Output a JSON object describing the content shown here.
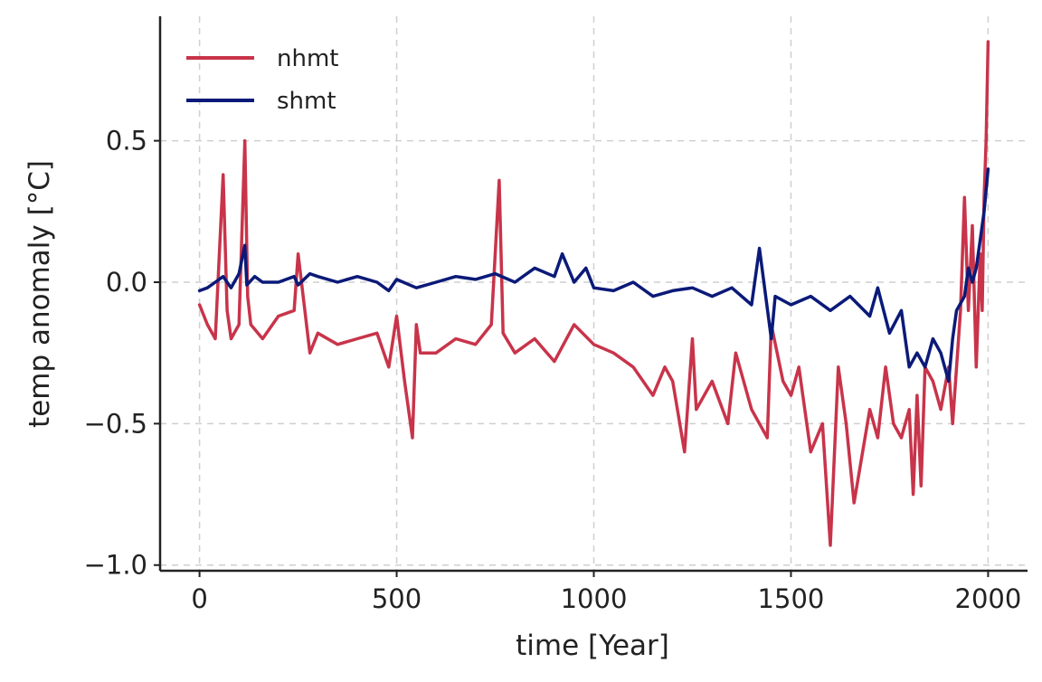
{
  "chart_data": {
    "type": "line",
    "title": "",
    "xlabel": "time [Year]",
    "ylabel": "temp anomaly [°C]",
    "xlim": [
      -100,
      2100
    ],
    "ylim": [
      -1.02,
      0.94
    ],
    "xticks": [
      0,
      500,
      1000,
      1500,
      2000
    ],
    "xtick_labels": [
      "0",
      "500",
      "1000",
      "1500",
      "2000"
    ],
    "yticks": [
      0.5,
      0.0,
      -0.5,
      -1.0
    ],
    "ytick_labels": [
      "0.5",
      "0.0",
      "−0.5",
      "−1.0"
    ],
    "grid": true,
    "legend_position": "upper-left",
    "series": [
      {
        "name": "nhmt",
        "color": "#c8344a",
        "x": [
          0,
          20,
          40,
          60,
          70,
          80,
          100,
          115,
          122,
          130,
          160,
          200,
          240,
          250,
          280,
          300,
          350,
          400,
          450,
          480,
          500,
          520,
          540,
          550,
          560,
          600,
          650,
          700,
          740,
          760,
          770,
          800,
          850,
          900,
          950,
          1000,
          1050,
          1100,
          1150,
          1180,
          1200,
          1230,
          1250,
          1260,
          1300,
          1340,
          1360,
          1400,
          1440,
          1450,
          1480,
          1500,
          1520,
          1550,
          1580,
          1600,
          1620,
          1640,
          1660,
          1700,
          1720,
          1740,
          1760,
          1780,
          1800,
          1810,
          1820,
          1830,
          1840,
          1860,
          1880,
          1900,
          1910,
          1930,
          1940,
          1950,
          1960,
          1970,
          1980,
          1985,
          1990,
          1995,
          2000
        ],
        "values": [
          -0.08,
          -0.15,
          -0.2,
          0.38,
          -0.1,
          -0.2,
          -0.15,
          0.5,
          -0.05,
          -0.15,
          -0.2,
          -0.12,
          -0.1,
          0.1,
          -0.25,
          -0.18,
          -0.22,
          -0.2,
          -0.18,
          -0.3,
          -0.12,
          -0.35,
          -0.55,
          -0.15,
          -0.25,
          -0.25,
          -0.2,
          -0.22,
          -0.15,
          0.36,
          -0.18,
          -0.25,
          -0.2,
          -0.28,
          -0.15,
          -0.22,
          -0.25,
          -0.3,
          -0.4,
          -0.3,
          -0.35,
          -0.6,
          -0.2,
          -0.45,
          -0.35,
          -0.5,
          -0.25,
          -0.45,
          -0.55,
          -0.15,
          -0.35,
          -0.4,
          -0.3,
          -0.6,
          -0.5,
          -0.93,
          -0.3,
          -0.5,
          -0.78,
          -0.45,
          -0.55,
          -0.3,
          -0.5,
          -0.55,
          -0.45,
          -0.75,
          -0.4,
          -0.72,
          -0.3,
          -0.35,
          -0.45,
          -0.3,
          -0.5,
          -0.1,
          0.3,
          -0.1,
          0.2,
          -0.3,
          0.1,
          -0.1,
          0.3,
          0.5,
          0.85
        ]
      },
      {
        "name": "shmt",
        "color": "#0b1a78",
        "x": [
          0,
          20,
          40,
          60,
          80,
          100,
          115,
          120,
          140,
          160,
          200,
          240,
          250,
          280,
          300,
          350,
          400,
          450,
          480,
          500,
          550,
          600,
          650,
          700,
          750,
          800,
          850,
          900,
          920,
          950,
          980,
          1000,
          1050,
          1100,
          1150,
          1200,
          1250,
          1300,
          1350,
          1400,
          1420,
          1450,
          1460,
          1500,
          1550,
          1600,
          1650,
          1700,
          1720,
          1750,
          1780,
          1800,
          1820,
          1840,
          1860,
          1880,
          1900,
          1910,
          1920,
          1940,
          1950,
          1960,
          1970,
          1980,
          1990,
          2000
        ],
        "values": [
          -0.03,
          -0.02,
          0.0,
          0.02,
          -0.02,
          0.03,
          0.13,
          -0.01,
          0.02,
          0.0,
          0.0,
          0.02,
          -0.01,
          0.03,
          0.02,
          0.0,
          0.02,
          0.0,
          -0.03,
          0.01,
          -0.02,
          0.0,
          0.02,
          0.01,
          0.03,
          0.0,
          0.05,
          0.02,
          0.1,
          0.0,
          0.05,
          -0.02,
          -0.03,
          0.0,
          -0.05,
          -0.03,
          -0.02,
          -0.05,
          -0.02,
          -0.08,
          0.12,
          -0.2,
          -0.05,
          -0.08,
          -0.05,
          -0.1,
          -0.05,
          -0.12,
          -0.02,
          -0.18,
          -0.1,
          -0.3,
          -0.25,
          -0.3,
          -0.2,
          -0.25,
          -0.35,
          -0.2,
          -0.1,
          -0.05,
          0.05,
          0.0,
          0.05,
          0.15,
          0.25,
          0.4
        ]
      }
    ]
  }
}
